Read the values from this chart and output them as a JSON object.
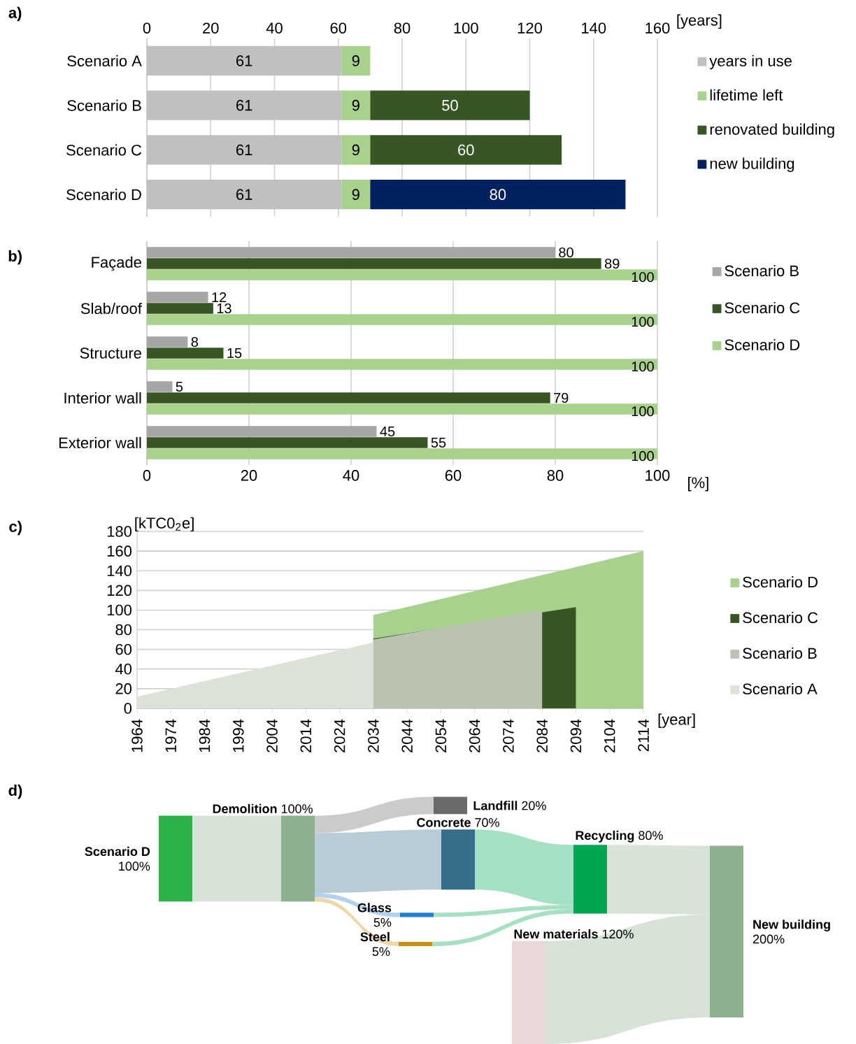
{
  "chart_data": [
    {
      "type": "bar",
      "title": "a)",
      "orientation": "horizontal",
      "stacked": true,
      "categories": [
        "Scenario A",
        "Scenario B",
        "Scenario C",
        "Scenario D"
      ],
      "series": [
        {
          "name": "years in use",
          "color": "#c0c0c0",
          "values": [
            61,
            61,
            61,
            61
          ]
        },
        {
          "name": "lifetime left",
          "color": "#a9d18e",
          "values": [
            9,
            9,
            9,
            9
          ]
        },
        {
          "name": "renovated building",
          "color": "#375623",
          "values": [
            null,
            50,
            60,
            null
          ]
        },
        {
          "name": "new building",
          "color": "#002060",
          "values": [
            null,
            null,
            null,
            80
          ]
        }
      ],
      "xlim": [
        0,
        160
      ],
      "xticks": [
        0,
        20,
        40,
        60,
        80,
        100,
        120,
        140,
        160
      ],
      "xlabel": "[years]",
      "grid": "x",
      "legend": "right",
      "data_labels": true
    },
    {
      "type": "bar",
      "title": "b)",
      "orientation": "horizontal",
      "categories": [
        "Façade",
        "Slab/roof",
        "Structure",
        "Interior wall",
        "Exterior wall"
      ],
      "series": [
        {
          "name": "Scenario B",
          "color": "#a6a6a6",
          "values": [
            80,
            12,
            8,
            5,
            45
          ]
        },
        {
          "name": "Scenario C",
          "color": "#375623",
          "values": [
            89,
            13,
            15,
            79,
            55
          ]
        },
        {
          "name": "Scenario D",
          "color": "#a9d18e",
          "values": [
            100,
            100,
            100,
            100,
            100
          ]
        }
      ],
      "xlim": [
        0,
        100
      ],
      "xticks": [
        0,
        20,
        40,
        60,
        80,
        100
      ],
      "xlabel": "[%]",
      "grid": "x",
      "legend": "right",
      "data_labels": true
    },
    {
      "type": "area",
      "title": "c)",
      "ylabel": "[kTC0$_{2}$e]",
      "xlabel": "[year]",
      "series": [
        {
          "name": "Scenario D",
          "color": "#a9d18e",
          "x": [
            2034,
            2114
          ],
          "values": [
            95,
            160
          ]
        },
        {
          "name": "Scenario C",
          "color": "#375623",
          "x": [
            2034,
            2094
          ],
          "values": [
            71,
            103
          ]
        },
        {
          "name": "Scenario B",
          "color": "#b9c3b0",
          "x": [
            2034,
            2084
          ],
          "values": [
            70,
            100
          ]
        },
        {
          "name": "Scenario A",
          "color": "#dde2d8",
          "x": [
            1964,
            2034
          ],
          "values": [
            12,
            67
          ]
        }
      ],
      "xlim": [
        1964,
        2114
      ],
      "xticks": [
        1964,
        1974,
        1984,
        1994,
        2004,
        2014,
        2024,
        2034,
        2044,
        2054,
        2064,
        2074,
        2084,
        2094,
        2104,
        2114
      ],
      "ylim": [
        0,
        180
      ],
      "yticks": [
        0,
        20,
        40,
        60,
        80,
        100,
        120,
        140,
        160,
        180
      ],
      "grid": "y",
      "legend": "right"
    },
    {
      "type": "other",
      "title": "d)",
      "categories": [
        "Scenario D",
        "Demolition",
        "Landfill",
        "Concrete",
        "Glass",
        "Steel",
        "Recycling",
        "New materials",
        "New building"
      ],
      "values": [
        100,
        100,
        20,
        70,
        5,
        5,
        80,
        120,
        200
      ],
      "value_labels": [
        "100%",
        "100%",
        "20%",
        "70%",
        "5%",
        "5%",
        "80%",
        "120%",
        "200%"
      ],
      "colors": [
        "#2bb34a",
        "#8fb08f",
        "#6b6b6b",
        "#356d8a",
        "#1f7fcf",
        "#c8900f",
        "#00a651",
        "#e8d8d8",
        "#8fb08f"
      ]
    }
  ]
}
